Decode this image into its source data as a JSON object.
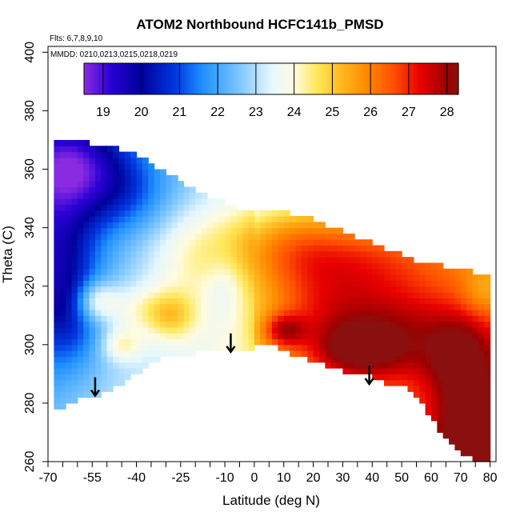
{
  "chart_data": {
    "type": "heatmap",
    "title": "ATOM2 Northbound HCFC141b_PMSD",
    "flights_note": "Flts: 6,7,8,9,10",
    "dates_note": "MMDD: 0210,0213,0215,0218,0219",
    "xlabel": "Latitude (deg N)",
    "ylabel": "Theta (C)",
    "xlim": [
      -70,
      82
    ],
    "ylim": [
      260,
      402
    ],
    "x_ticks_major": [
      -70,
      -55,
      -40,
      -25,
      -10,
      0,
      10,
      20,
      30,
      40,
      50,
      60,
      70,
      80
    ],
    "x_ticks_minor": [
      -65,
      -60,
      -50,
      -45,
      -35,
      -30,
      -20,
      -15,
      -5,
      5,
      15,
      25,
      35,
      45,
      55,
      65,
      75
    ],
    "y_ticks": [
      260,
      280,
      300,
      320,
      340,
      360,
      380,
      400
    ],
    "colorbar": {
      "range": [
        18.5,
        28.3
      ],
      "ticks": [
        19,
        20,
        21,
        22,
        23,
        24,
        25,
        26,
        27,
        28
      ],
      "stops": [
        {
          "v": 18.5,
          "c": "#8a2be2"
        },
        {
          "v": 19.2,
          "c": "#2a00d5"
        },
        {
          "v": 20.0,
          "c": "#00009a"
        },
        {
          "v": 20.9,
          "c": "#0038e0"
        },
        {
          "v": 21.6,
          "c": "#1e90ff"
        },
        {
          "v": 22.6,
          "c": "#80c8ff"
        },
        {
          "v": 23.4,
          "c": "#e6f7ff"
        },
        {
          "v": 24.0,
          "c": "#fffbe0"
        },
        {
          "v": 24.6,
          "c": "#ffe85a"
        },
        {
          "v": 25.2,
          "c": "#ffbb22"
        },
        {
          "v": 25.9,
          "c": "#ff8a00"
        },
        {
          "v": 26.6,
          "c": "#ff5000"
        },
        {
          "v": 27.3,
          "c": "#e80000"
        },
        {
          "v": 28.0,
          "c": "#9c0000"
        },
        {
          "v": 28.3,
          "c": "#8a1010"
        }
      ]
    },
    "boundary_top": [
      [
        -68,
        370
      ],
      [
        -62,
        370
      ],
      [
        -60,
        369
      ],
      [
        -55,
        368
      ],
      [
        -50,
        367
      ],
      [
        -45,
        366
      ],
      [
        -40,
        364
      ],
      [
        -35,
        361
      ],
      [
        -30,
        358
      ],
      [
        -25,
        355
      ],
      [
        -20,
        352
      ],
      [
        -15,
        350
      ],
      [
        -10,
        348
      ],
      [
        -5,
        346
      ],
      [
        0,
        344
      ],
      [
        5,
        345
      ],
      [
        10,
        345
      ],
      [
        15,
        343
      ],
      [
        20,
        342
      ],
      [
        25,
        340
      ],
      [
        30,
        338
      ],
      [
        35,
        336
      ],
      [
        40,
        334
      ],
      [
        45,
        332
      ],
      [
        50,
        330
      ],
      [
        55,
        328
      ],
      [
        60,
        327
      ],
      [
        65,
        326
      ],
      [
        70,
        325
      ],
      [
        75,
        324
      ],
      [
        80,
        323
      ]
    ],
    "boundary_bottom": [
      [
        -68,
        277
      ],
      [
        -65,
        279
      ],
      [
        -60,
        281
      ],
      [
        -55,
        282
      ],
      [
        -50,
        284
      ],
      [
        -45,
        287
      ],
      [
        -40,
        290
      ],
      [
        -35,
        294
      ],
      [
        -30,
        296
      ],
      [
        -25,
        297
      ],
      [
        -20,
        297
      ],
      [
        -15,
        298
      ],
      [
        -10,
        298
      ],
      [
        -5,
        298
      ],
      [
        0,
        299
      ],
      [
        5,
        300
      ],
      [
        10,
        298
      ],
      [
        15,
        296
      ],
      [
        20,
        294
      ],
      [
        25,
        293
      ],
      [
        30,
        291
      ],
      [
        35,
        290
      ],
      [
        40,
        289
      ],
      [
        45,
        287
      ],
      [
        50,
        286
      ],
      [
        55,
        283
      ],
      [
        60,
        275
      ],
      [
        65,
        268
      ],
      [
        70,
        263
      ],
      [
        75,
        260
      ],
      [
        80,
        260
      ]
    ],
    "arrows": [
      {
        "lat": -54,
        "theta": 285
      },
      {
        "lat": -8,
        "theta": 300
      },
      {
        "lat": 39,
        "theta": 289
      }
    ],
    "value_blobs": [
      {
        "x": -68,
        "y": 335,
        "sx": 10,
        "sy": 25,
        "a": -2.2
      },
      {
        "x": -60,
        "y": 362,
        "sx": 12,
        "sy": 10,
        "a": -2.0
      },
      {
        "x": -62,
        "y": 310,
        "sx": 8,
        "sy": 12,
        "a": -1.0
      },
      {
        "x": -45,
        "y": 352,
        "sx": 12,
        "sy": 10,
        "a": -1.3
      },
      {
        "x": -54,
        "y": 315,
        "sx": 5,
        "sy": 5,
        "a": 1.8
      },
      {
        "x": -45,
        "y": 300,
        "sx": 5,
        "sy": 4,
        "a": 1.3
      },
      {
        "x": -40,
        "y": 312,
        "sx": 8,
        "sy": 6,
        "a": 1.0
      },
      {
        "x": -20,
        "y": 330,
        "sx": 12,
        "sy": 12,
        "a": 1.0
      },
      {
        "x": -10,
        "y": 320,
        "sx": 5,
        "sy": 8,
        "a": -0.7
      },
      {
        "x": -28,
        "y": 310,
        "sx": 6,
        "sy": 6,
        "a": 1.5
      },
      {
        "x": 10,
        "y": 335,
        "sx": 15,
        "sy": 10,
        "a": 1.6
      },
      {
        "x": 20,
        "y": 315,
        "sx": 15,
        "sy": 15,
        "a": 1.4
      },
      {
        "x": 40,
        "y": 330,
        "sx": 20,
        "sy": 10,
        "a": 1.6
      },
      {
        "x": 45,
        "y": 305,
        "sx": 20,
        "sy": 12,
        "a": 2.2
      },
      {
        "x": 10,
        "y": 305,
        "sx": 5,
        "sy": 4,
        "a": 2.0
      },
      {
        "x": 35,
        "y": 298,
        "sx": 10,
        "sy": 6,
        "a": 1.7
      },
      {
        "x": 70,
        "y": 295,
        "sx": 8,
        "sy": 10,
        "a": 1.8
      },
      {
        "x": 73,
        "y": 270,
        "sx": 8,
        "sy": 12,
        "a": 2.2
      },
      {
        "x": 78,
        "y": 318,
        "sx": 5,
        "sy": 6,
        "a": -0.8
      }
    ]
  }
}
